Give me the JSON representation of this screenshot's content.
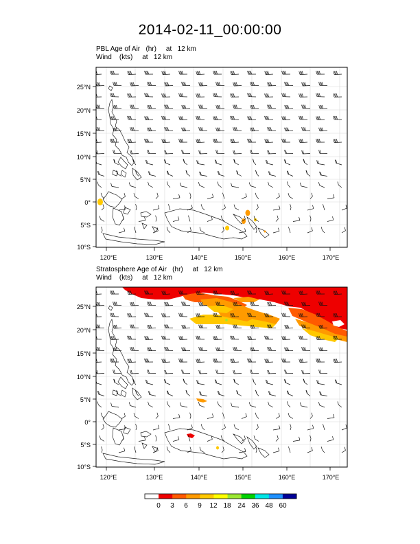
{
  "title": "2014-02-11_00:00:00",
  "panels": [
    {
      "field_label": "PBL Age of Air   (hr)     at   12 km",
      "wind_label": "Wind    (kts)     at   12 km",
      "lat_ticks": [
        "25°N",
        "20°N",
        "15°N",
        "10°N",
        "5°N",
        "0°",
        "5°S",
        "10°S"
      ],
      "lon_ticks": [
        "120°E",
        "130°E",
        "140°E",
        "150°E",
        "160°E",
        "170°E"
      ]
    },
    {
      "field_label": "Stratosphere Age of Air   (hr)     at   12 km",
      "wind_label": "Wind    (kts)     at   12 km",
      "lat_ticks": [
        "25°N",
        "20°N",
        "15°N",
        "10°N",
        "5°N",
        "0°",
        "5°S",
        "10°S"
      ],
      "lon_ticks": [
        "120°E",
        "130°E",
        "140°E",
        "150°E",
        "160°E",
        "170°E"
      ]
    }
  ],
  "colorbar": {
    "labels": [
      "0",
      "3",
      "6",
      "9",
      "12",
      "18",
      "24",
      "36",
      "48",
      "60"
    ],
    "colors": [
      "#ffffff",
      "#ee0000",
      "#ff5a00",
      "#ff9a00",
      "#ffc800",
      "#ffff00",
      "#9be832",
      "#00d200",
      "#00e6e6",
      "#1e90ff",
      "#000096"
    ]
  }
}
